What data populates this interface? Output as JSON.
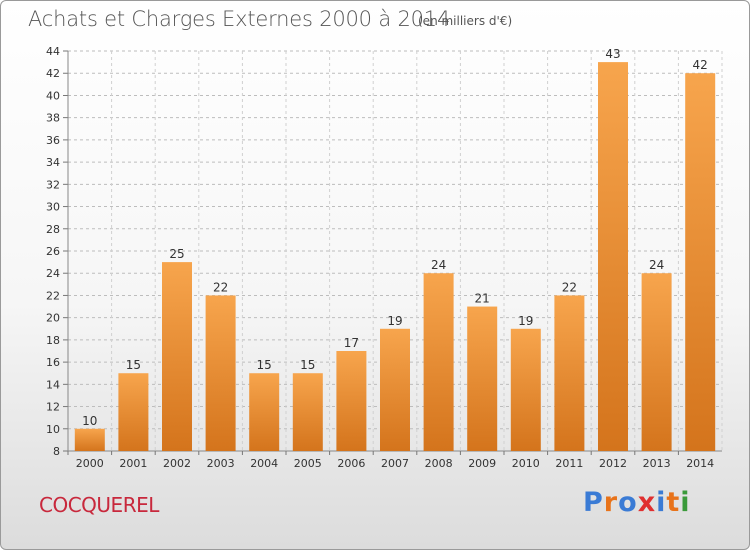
{
  "header": {
    "title": "Achats et Charges Externes 2000 à 2014",
    "subtitle": "(en milliers d'€)"
  },
  "footer": {
    "commune": "COCQUEREL",
    "logo": "Proxiti"
  },
  "colors": {
    "bar_light": "#f7a54d",
    "bar_dark": "#d4741c",
    "logo_letters": [
      "#3a7bd5",
      "#e8731a",
      "#3a7bd5",
      "#e03030",
      "#3a7bd5",
      "#e8731a",
      "#3a9a3a"
    ]
  },
  "chart_data": {
    "type": "bar",
    "categories": [
      "2000",
      "2001",
      "2002",
      "2003",
      "2004",
      "2005",
      "2006",
      "2007",
      "2008",
      "2009",
      "2010",
      "2011",
      "2012",
      "2013",
      "2014"
    ],
    "values": [
      10,
      15,
      25,
      22,
      15,
      15,
      17,
      19,
      24,
      21,
      19,
      22,
      43,
      24,
      42
    ],
    "ylim": [
      8,
      44
    ],
    "yticks": [
      8,
      10,
      12,
      14,
      16,
      18,
      20,
      22,
      24,
      26,
      28,
      30,
      32,
      34,
      36,
      38,
      40,
      42,
      44
    ],
    "grid": true,
    "data_labels": true
  }
}
